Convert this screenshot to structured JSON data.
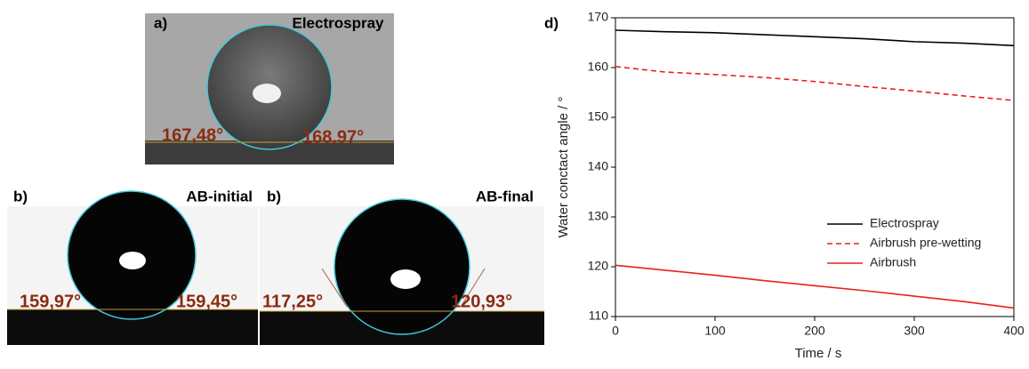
{
  "panels": {
    "a": {
      "label": "a)",
      "title": "Electrospray",
      "left_angle": "167,48°",
      "right_angle": "168,97°"
    },
    "b1": {
      "label": "b)",
      "title": "AB-initial",
      "left_angle": "159,97°",
      "right_angle": "159,45°"
    },
    "b2": {
      "label": "b)",
      "title": "AB-final",
      "left_angle": "117,25°",
      "right_angle": "120,93°"
    },
    "d": {
      "label": "d)"
    }
  },
  "chart_data": {
    "type": "line",
    "x_label": "Time / s",
    "y_label": "Water conctact angle / °",
    "x": [
      0,
      50,
      100,
      150,
      200,
      250,
      300,
      350,
      400
    ],
    "series": [
      {
        "name": "Electrospray",
        "color": "#000000",
        "line_style": "solid",
        "values": [
          167.5,
          167.2,
          167,
          166.6,
          166.2,
          165.8,
          165.2,
          164.9,
          164.4
        ]
      },
      {
        "name": "Airbrush pre-wetting",
        "color": "#e8221c",
        "line_style": "dashed",
        "values": [
          160.2,
          159.1,
          158.6,
          158,
          157.2,
          156.2,
          155.3,
          154.3,
          153.4
        ]
      },
      {
        "name": "Airbrush",
        "color": "#e8221c",
        "line_style": "solid",
        "values": [
          120.3,
          119.3,
          118.3,
          117.2,
          116.2,
          115.2,
          114.1,
          113,
          111.7
        ]
      }
    ],
    "xlim": [
      0,
      400
    ],
    "ylim": [
      110,
      170
    ],
    "xticks": [
      0,
      100,
      200,
      300,
      400
    ],
    "yticks": [
      110,
      120,
      130,
      140,
      150,
      160,
      170
    ],
    "grid": false,
    "legend": "right"
  }
}
